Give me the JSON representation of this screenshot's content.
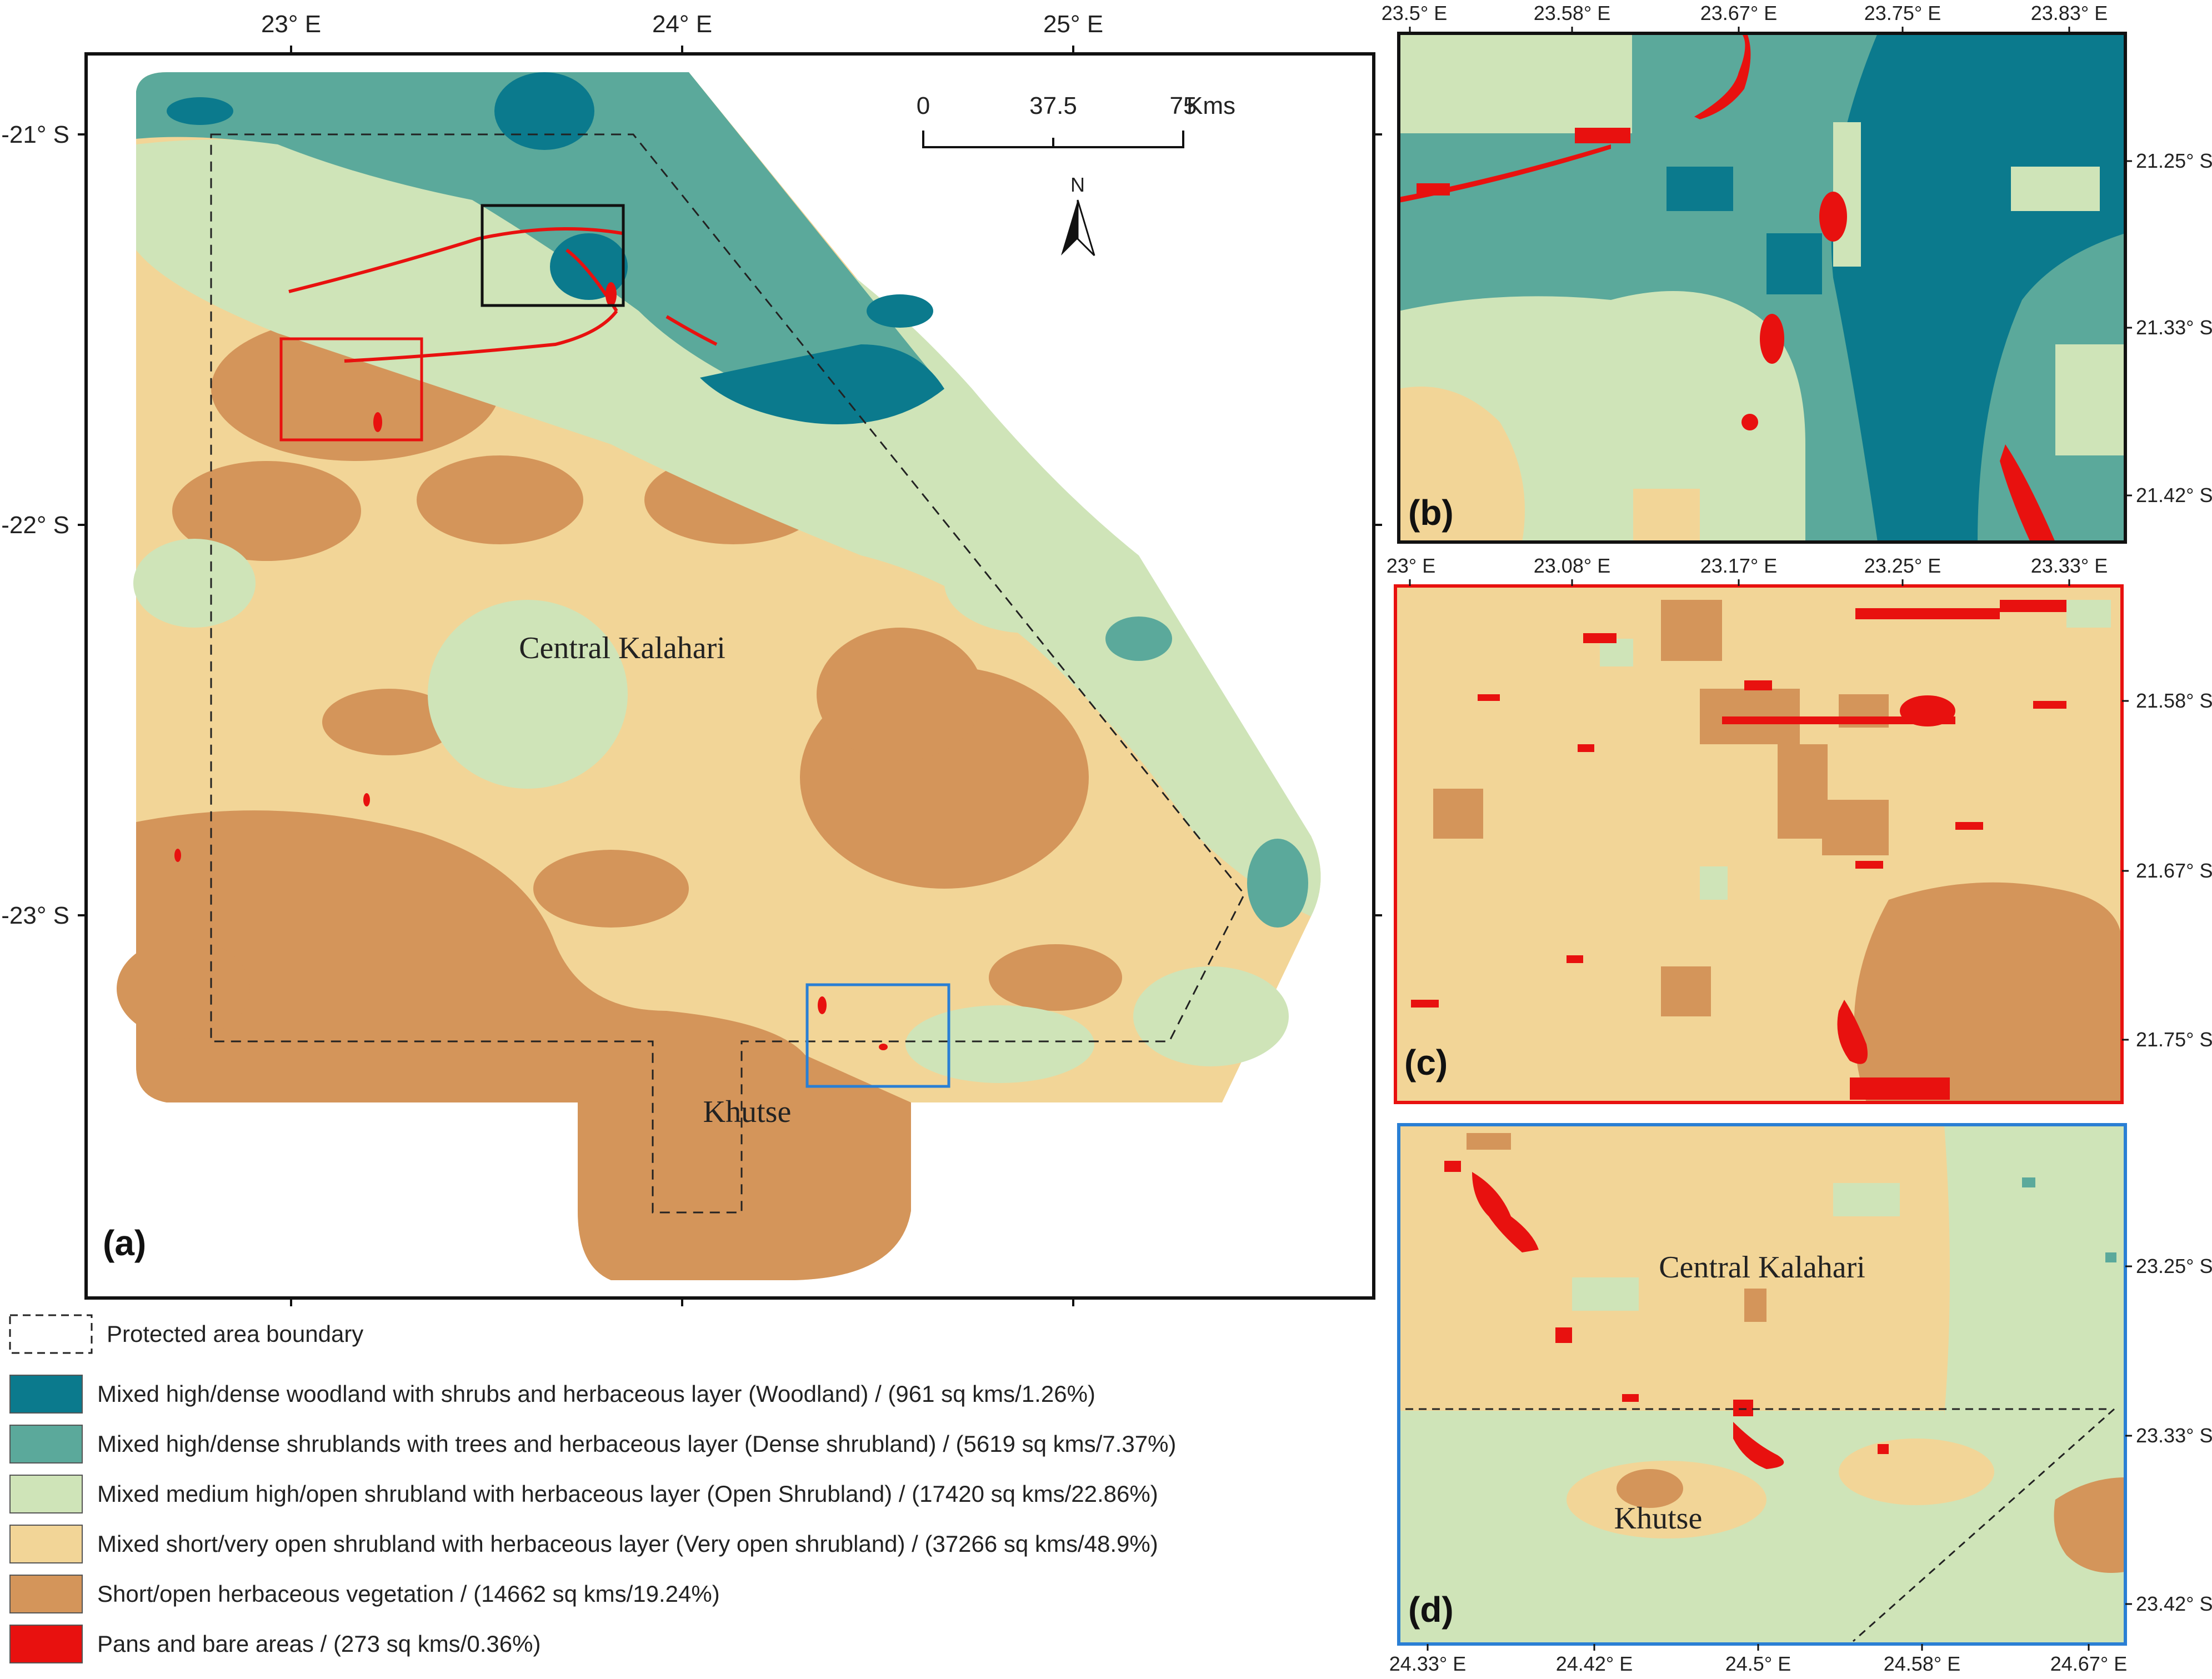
{
  "panels": {
    "a": {
      "label": "(a)",
      "top_ticks": [
        "23° E",
        "24° E",
        "25° E"
      ],
      "left_ticks": [
        "-21° S",
        "-22° S",
        "-23° S"
      ],
      "places": [
        "Central Kalahari",
        "Khutse"
      ],
      "scalebar": {
        "labels": [
          "0",
          "37.5",
          "75"
        ],
        "unit": "Kms"
      },
      "north": "N"
    },
    "b": {
      "label": "(b)",
      "top_ticks": [
        "23.5° E",
        "23.58° E",
        "23.67° E",
        "23.75° E",
        "23.83° E"
      ],
      "right_ticks": [
        "21.25° S",
        "21.33° S",
        "21.42° S"
      ]
    },
    "c": {
      "label": "(c)",
      "top_ticks": [
        "23° E",
        "23.08° E",
        "23.17° E",
        "23.25° E",
        "23.33° E"
      ],
      "right_ticks": [
        "21.58° S",
        "21.67° S",
        "21.75° S"
      ]
    },
    "d": {
      "label": "(d)",
      "bottom_ticks": [
        "24.33° E",
        "24.42° E",
        "24.5° E",
        "24.58° E",
        "24.67° E"
      ],
      "right_ticks": [
        "23.25° S",
        "23.33° S",
        "23.42° S"
      ],
      "places": [
        "Central Kalahari",
        "Khutse"
      ]
    }
  },
  "legend": {
    "boundary_label": "Protected area boundary",
    "classes": [
      {
        "color": "#0b7a8d",
        "label": "Mixed high/dense woodland with shrubs and herbaceous layer (Woodland) / (961 sq kms/1.26%)"
      },
      {
        "color": "#5ba99b",
        "label": "Mixed high/dense shrublands with trees and herbaceous layer (Dense shrubland) / (5619 sq kms/7.37%)"
      },
      {
        "color": "#cfe4b8",
        "label": "Mixed medium high/open shrubland with herbaceous layer (Open Shrubland) / (17420 sq kms/22.86%)"
      },
      {
        "color": "#f2d597",
        "label": "Mixed short/very open shrubland with herbaceous layer (Very open shrubland) / (37266 sq kms/48.9%)"
      },
      {
        "color": "#d4955a",
        "label": "Short/open herbaceous vegetation / (14662 sq kms/19.24%)"
      },
      {
        "color": "#e8110f",
        "label": "Pans and bare areas / (273 sq kms/0.36%)"
      }
    ]
  },
  "colors": {
    "woodland": "#0b7a8d",
    "dense_shrub": "#5ba99b",
    "open_shrub": "#cfe4b8",
    "very_open": "#f2d597",
    "herbaceous": "#d4955a",
    "pans": "#e8110f",
    "inset_b_frame": "#111111",
    "inset_c_frame": "#e8110f",
    "inset_d_frame": "#2a7fd4"
  }
}
